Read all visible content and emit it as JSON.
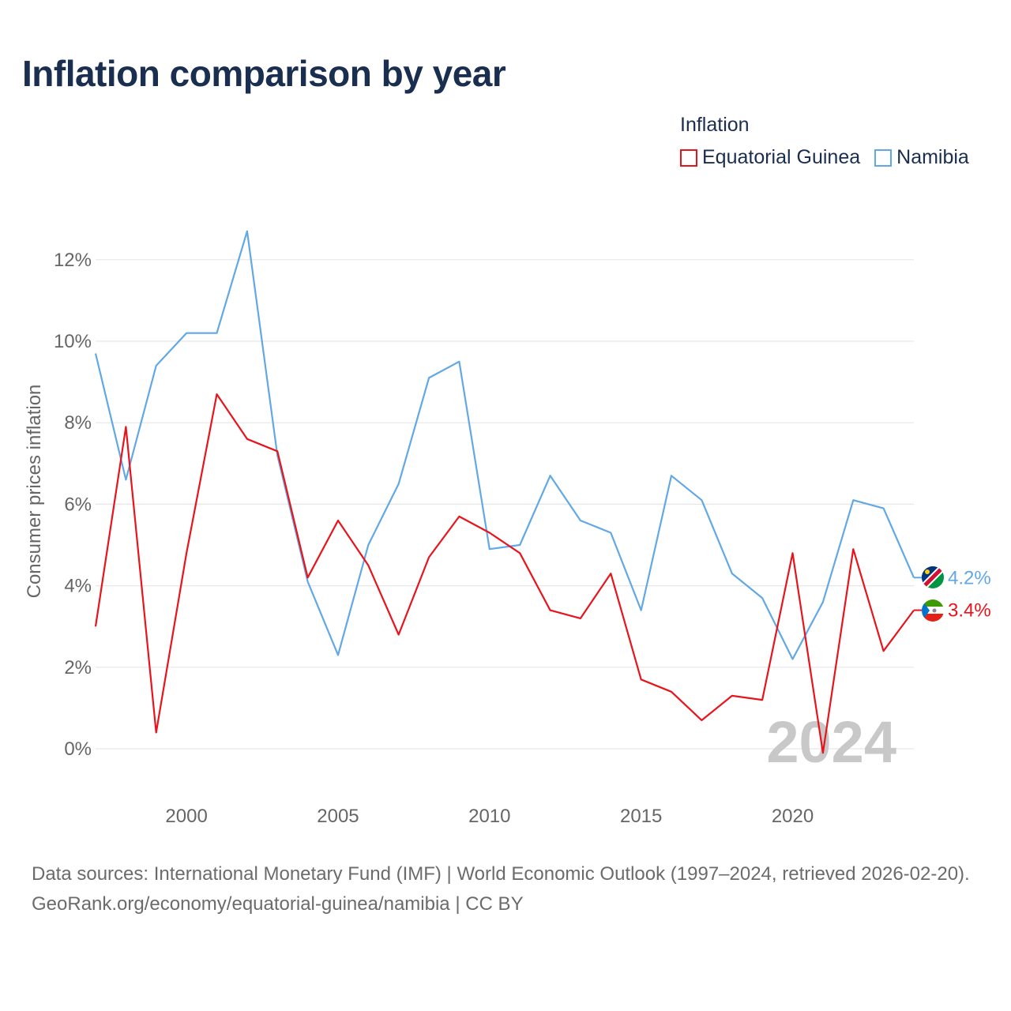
{
  "title": "Inflation comparison by year",
  "legend": {
    "title": "Inflation",
    "items": [
      {
        "label": "Equatorial Guinea",
        "color": "#e8141c"
      },
      {
        "label": "Namibia",
        "color": "#62a8e6"
      }
    ]
  },
  "chart_data": {
    "type": "line",
    "title": "Inflation comparison by year",
    "ylabel": "Consumer prices inflation",
    "xlabel": "",
    "x": [
      1997,
      1998,
      1999,
      2000,
      2001,
      2002,
      2003,
      2004,
      2005,
      2006,
      2007,
      2008,
      2009,
      2010,
      2011,
      2012,
      2013,
      2014,
      2015,
      2016,
      2017,
      2018,
      2019,
      2020,
      2021,
      2022,
      2023,
      2024
    ],
    "xlim": [
      1997,
      2024
    ],
    "ylim": [
      -1.1,
      13.5
    ],
    "x_ticks": [
      2000,
      2005,
      2010,
      2015,
      2020
    ],
    "x_tick_labels": [
      "2000",
      "2005",
      "2010",
      "2015",
      "2020"
    ],
    "y_ticks": [
      0,
      2,
      4,
      6,
      8,
      10,
      12
    ],
    "y_tick_labels": [
      "0%",
      "2%",
      "4%",
      "6%",
      "8%",
      "10%",
      "12%"
    ],
    "grid": true,
    "year_watermark": "2024",
    "series": [
      {
        "name": "Equatorial Guinea",
        "color": "#e8141c",
        "end_label": "3.4%",
        "values": [
          3.0,
          7.9,
          0.4,
          4.8,
          8.7,
          7.6,
          7.3,
          4.2,
          5.6,
          4.5,
          2.8,
          4.7,
          5.7,
          5.3,
          4.8,
          3.4,
          3.2,
          4.3,
          1.7,
          1.4,
          0.7,
          1.3,
          1.2,
          4.8,
          -0.1,
          4.9,
          2.4,
          3.4
        ]
      },
      {
        "name": "Namibia",
        "color": "#62a8e6",
        "end_label": "4.2%",
        "values": [
          9.7,
          6.6,
          9.4,
          10.2,
          10.2,
          12.7,
          7.2,
          4.1,
          2.3,
          5.0,
          6.5,
          9.1,
          9.5,
          4.9,
          5.0,
          6.7,
          5.6,
          5.3,
          3.4,
          6.7,
          6.1,
          4.3,
          3.7,
          2.2,
          3.6,
          6.1,
          5.9,
          4.2
        ]
      }
    ]
  },
  "footer": {
    "sources": "Data sources: International Monetary Fund (IMF) | World Economic Outlook (1997–2024, retrieved 2026-02-20).",
    "attribution": "GeoRank.org/economy/equatorial-guinea/namibia | CC BY"
  }
}
